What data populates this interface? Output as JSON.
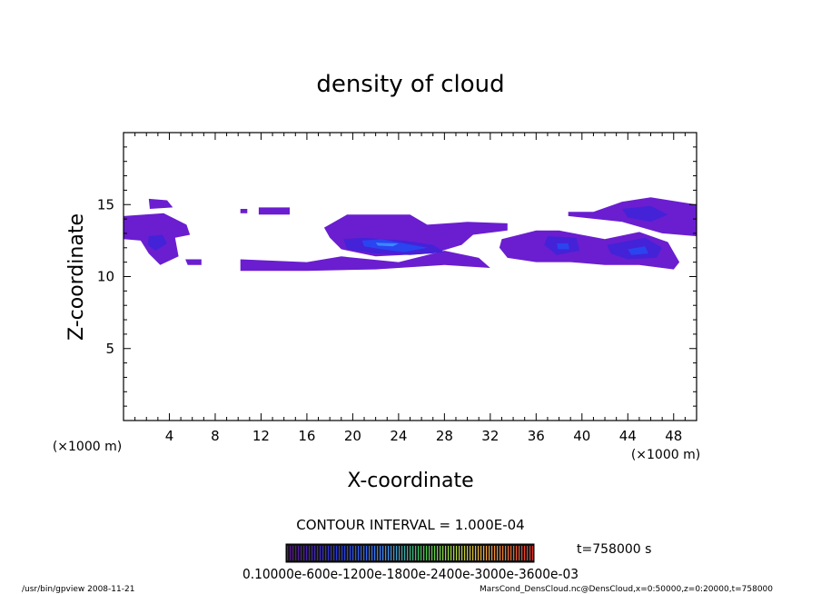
{
  "chart_data": {
    "type": "heatmap",
    "title": "density of cloud",
    "xlabel": "X-coordinate",
    "ylabel": "Z-coordinate",
    "x_unit_left": "(×1000 m)",
    "x_unit_right": "(×1000 m)",
    "xlim": [
      0,
      50
    ],
    "ylim": [
      0,
      20
    ],
    "x_ticks": [
      "4",
      "8",
      "12",
      "16",
      "20",
      "24",
      "28",
      "32",
      "36",
      "40",
      "44",
      "48"
    ],
    "x_tick_values": [
      4,
      8,
      12,
      16,
      20,
      24,
      28,
      32,
      36,
      40,
      44,
      48
    ],
    "y_ticks": [
      "5",
      "10",
      "15"
    ],
    "y_tick_values": [
      5,
      10,
      15
    ],
    "contour_interval": "CONTOUR INTERVAL = 1.000E-04",
    "time_label": "t=758000 s",
    "colorbar_labels": "0.10000e-600e-1200e-1800e-2400e-3000e-3600e-03",
    "colors": {
      "outer": "#6a1ed0",
      "mid": "#4422d8",
      "core": "#2a44f0",
      "peak": "#3a88ff"
    },
    "regions": [
      {
        "level": "outer",
        "polygon": [
          [
            0,
            14.2
          ],
          [
            3.5,
            14.4
          ],
          [
            5.5,
            13.6
          ],
          [
            5.8,
            12.9
          ],
          [
            4.5,
            12.7
          ],
          [
            4.8,
            11.4
          ],
          [
            3.2,
            10.8
          ],
          [
            2.2,
            11.6
          ],
          [
            1.5,
            12.5
          ],
          [
            0,
            12.6
          ]
        ]
      },
      {
        "level": "outer",
        "polygon": [
          [
            2.2,
            15.4
          ],
          [
            3.8,
            15.3
          ],
          [
            4.3,
            14.8
          ],
          [
            2.3,
            14.7
          ]
        ]
      },
      {
        "level": "mid",
        "polygon": [
          [
            2.2,
            12.8
          ],
          [
            3.4,
            12.9
          ],
          [
            3.8,
            12.3
          ],
          [
            2.8,
            11.8
          ],
          [
            2.1,
            12.2
          ]
        ]
      },
      {
        "level": "outer",
        "polygon": [
          [
            5.4,
            11.2
          ],
          [
            6.8,
            11.2
          ],
          [
            6.8,
            10.8
          ],
          [
            5.6,
            10.8
          ]
        ]
      },
      {
        "level": "outer",
        "polygon": [
          [
            10.2,
            14.7
          ],
          [
            10.8,
            14.7
          ],
          [
            10.8,
            14.4
          ],
          [
            10.2,
            14.4
          ]
        ]
      },
      {
        "level": "outer",
        "polygon": [
          [
            11.8,
            14.8
          ],
          [
            14.5,
            14.8
          ],
          [
            14.5,
            14.3
          ],
          [
            11.8,
            14.3
          ]
        ]
      },
      {
        "level": "outer",
        "polygon": [
          [
            10.2,
            11.2
          ],
          [
            16,
            11.0
          ],
          [
            19,
            11.4
          ],
          [
            24,
            11.0
          ],
          [
            28,
            11.8
          ],
          [
            31,
            11.3
          ],
          [
            32,
            10.6
          ],
          [
            28,
            10.8
          ],
          [
            22,
            10.5
          ],
          [
            16,
            10.4
          ],
          [
            10.2,
            10.4
          ]
        ]
      },
      {
        "level": "outer",
        "polygon": [
          [
            17.5,
            13.4
          ],
          [
            19.5,
            14.3
          ],
          [
            25,
            14.3
          ],
          [
            26.5,
            13.6
          ],
          [
            30,
            13.8
          ],
          [
            33.5,
            13.7
          ],
          [
            33.5,
            13.2
          ],
          [
            30.5,
            12.9
          ],
          [
            29.5,
            12.2
          ],
          [
            27,
            11.6
          ],
          [
            22,
            11.4
          ],
          [
            19,
            11.9
          ],
          [
            18,
            12.7
          ]
        ]
      },
      {
        "level": "mid",
        "polygon": [
          [
            19.2,
            12.6
          ],
          [
            21,
            12.7
          ],
          [
            24.5,
            12.5
          ],
          [
            27,
            12.2
          ],
          [
            28,
            11.7
          ],
          [
            25,
            11.5
          ],
          [
            22,
            11.6
          ],
          [
            19.5,
            11.9
          ]
        ]
      },
      {
        "level": "core",
        "polygon": [
          [
            20.8,
            12.5
          ],
          [
            22.5,
            12.6
          ],
          [
            24.5,
            12.3
          ],
          [
            26.5,
            12.0
          ],
          [
            24.5,
            11.7
          ],
          [
            22.5,
            11.9
          ],
          [
            21,
            12.1
          ]
        ]
      },
      {
        "level": "peak",
        "polygon": [
          [
            22,
            12.35
          ],
          [
            24,
            12.3
          ],
          [
            23.5,
            12.1
          ],
          [
            22.2,
            12.15
          ]
        ]
      },
      {
        "level": "outer",
        "polygon": [
          [
            33,
            12.6
          ],
          [
            36,
            13.2
          ],
          [
            38,
            13.2
          ],
          [
            42,
            12.6
          ],
          [
            45,
            13.1
          ],
          [
            47.5,
            12.4
          ],
          [
            48.5,
            11.0
          ],
          [
            48,
            10.5
          ],
          [
            45,
            10.8
          ],
          [
            42,
            10.8
          ],
          [
            39,
            11.0
          ],
          [
            36,
            11.0
          ],
          [
            33.5,
            11.3
          ],
          [
            32.8,
            12.0
          ]
        ]
      },
      {
        "level": "mid",
        "polygon": [
          [
            37,
            12.8
          ],
          [
            39.5,
            12.7
          ],
          [
            39.8,
            11.8
          ],
          [
            37.8,
            11.5
          ],
          [
            36.7,
            12.2
          ]
        ]
      },
      {
        "level": "mid",
        "polygon": [
          [
            42.2,
            12.2
          ],
          [
            45.5,
            12.7
          ],
          [
            47,
            12.0
          ],
          [
            46.5,
            11.3
          ],
          [
            44,
            11.2
          ],
          [
            42.5,
            11.6
          ]
        ]
      },
      {
        "level": "outer",
        "polygon": [
          [
            38.8,
            14.5
          ],
          [
            41,
            14.5
          ],
          [
            43.5,
            15.2
          ],
          [
            46,
            15.5
          ],
          [
            50,
            15.0
          ],
          [
            50,
            12.8
          ],
          [
            47,
            13.0
          ],
          [
            43.5,
            13.8
          ],
          [
            40,
            14.1
          ],
          [
            38.8,
            14.2
          ]
        ]
      },
      {
        "level": "mid",
        "polygon": [
          [
            43.5,
            14.7
          ],
          [
            46,
            14.9
          ],
          [
            47.5,
            14.3
          ],
          [
            46,
            13.8
          ],
          [
            44,
            14.1
          ]
        ]
      },
      {
        "level": "core",
        "polygon": [
          [
            37.8,
            12.3
          ],
          [
            38.8,
            12.3
          ],
          [
            38.9,
            11.9
          ],
          [
            37.9,
            11.9
          ]
        ]
      },
      {
        "level": "core",
        "polygon": [
          [
            44,
            11.9
          ],
          [
            45.5,
            12.1
          ],
          [
            45.8,
            11.6
          ],
          [
            44.3,
            11.5
          ]
        ]
      }
    ]
  },
  "footer": {
    "left": "/usr/bin/gpview   2008-11-21",
    "right": "MarsCond_DensCloud.nc@DensCloud,x=0:50000,z=0:20000,t=758000"
  }
}
